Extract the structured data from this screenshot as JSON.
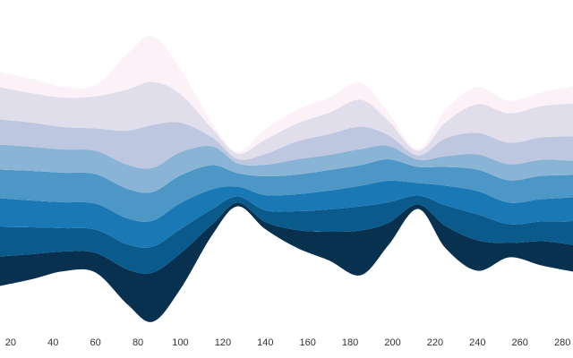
{
  "chart_data": {
    "type": "area",
    "subtype": "streamgraph",
    "title": "",
    "xlabel": "",
    "ylabel": "",
    "xlim": [
      15,
      285
    ],
    "x_ticks": [
      "20",
      "40",
      "60",
      "80",
      "100",
      "120",
      "140",
      "160",
      "180",
      "200",
      "220",
      "240",
      "260",
      "280"
    ],
    "grid": false,
    "legend": "none",
    "x": [
      15,
      30,
      45,
      60,
      75,
      87,
      100,
      115,
      127,
      140,
      155,
      170,
      185,
      198,
      212,
      225,
      240,
      255,
      270,
      285
    ],
    "series": [
      {
        "color": "#08304f",
        "values": [
          33,
          28,
          22,
          22,
          39,
          55,
          40,
          12,
          4,
          8,
          20,
          32,
          50,
          25,
          5,
          25,
          34,
          16,
          27,
          30
        ]
      },
      {
        "color": "#0b5a8c",
        "values": [
          33,
          30,
          26,
          26,
          28,
          29,
          27,
          17,
          7,
          13,
          21,
          25,
          27,
          23,
          10,
          23,
          29,
          21,
          22,
          26
        ]
      },
      {
        "color": "#1a78b5",
        "values": [
          32,
          30,
          29,
          29,
          29,
          29,
          29,
          22,
          11,
          17,
          19,
          21,
          23,
          24,
          14,
          22,
          26,
          24,
          25,
          27
        ]
      },
      {
        "color": "#4d97c6",
        "values": [
          32,
          33,
          33,
          33,
          33,
          32,
          31,
          27,
          15,
          21,
          22,
          23,
          23,
          24,
          18,
          21,
          24,
          25,
          26,
          25
        ]
      },
      {
        "color": "#8ab4d6",
        "values": [
          28,
          27,
          26,
          26,
          27,
          27,
          26,
          21,
          11,
          13,
          17,
          17,
          18,
          15,
          8,
          12,
          17,
          18,
          18,
          16
        ]
      },
      {
        "color": "#bdc8e0",
        "values": [
          28,
          27,
          25,
          25,
          38,
          48,
          33,
          10,
          5,
          12,
          20,
          23,
          25,
          12,
          5,
          20,
          24,
          24,
          25,
          27
        ]
      },
      {
        "color": "#e1deec",
        "values": [
          36,
          33,
          33,
          36,
          46,
          48,
          32,
          10,
          6,
          16,
          20,
          24,
          30,
          16,
          5,
          18,
          32,
          33,
          35,
          37
        ]
      },
      {
        "color": "#fdf1f8",
        "values": [
          17,
          16,
          12,
          12,
          40,
          51,
          28,
          6,
          2,
          12,
          15,
          17,
          19,
          9,
          2,
          14,
          19,
          14,
          15,
          19
        ]
      }
    ]
  }
}
